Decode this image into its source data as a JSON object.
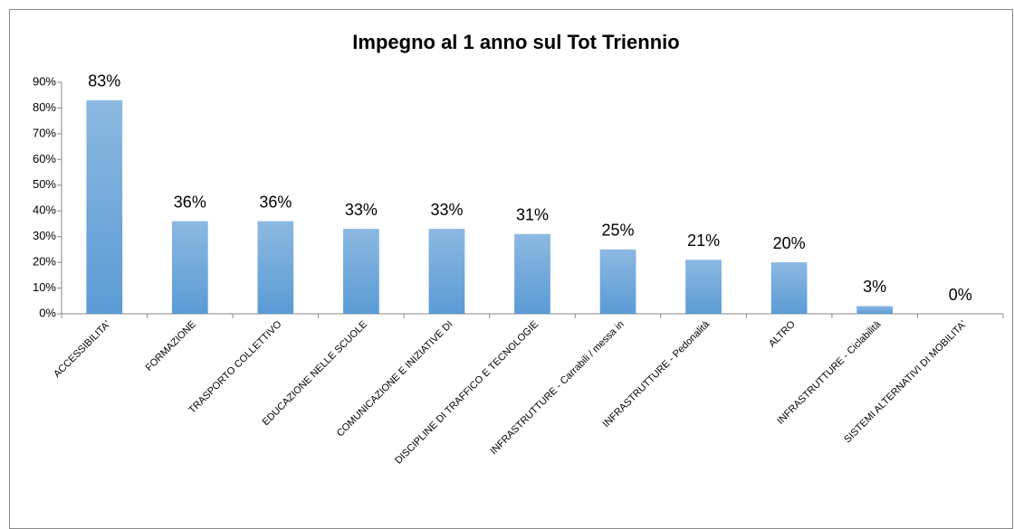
{
  "chart_data": {
    "type": "bar",
    "title": "Impegno al 1 anno sul Tot Triennio",
    "categories": [
      "ACCESSIBILITA'",
      "FORMAZIONE",
      "TRASPORTO COLLETTIVO",
      "EDUCAZIONE NELLE SCUOLE",
      "COMUNICAZIONE E INIZIATIVE DI",
      "DISCIPLINE DI TRAFFICO E TECNOLOGIE",
      "INFRASTRUTTURE - Carrabili / messa in",
      "INFRASTRUTTURE - Pedonalità",
      "ALTRO",
      "INFRASTRUTTURE - Ciclabilità",
      "SISTEMI ALTERNATIVI DI MOBILITA'"
    ],
    "values": [
      83,
      36,
      36,
      33,
      33,
      31,
      25,
      21,
      20,
      3,
      0
    ],
    "value_labels": [
      "83%",
      "36%",
      "36%",
      "33%",
      "33%",
      "31%",
      "25%",
      "21%",
      "20%",
      "3%",
      "0%"
    ],
    "color": "#5b9bd5",
    "ylim": [
      0,
      90
    ],
    "yticks": [
      {
        "value": 0,
        "label": "0%"
      },
      {
        "value": 10,
        "label": "10%"
      },
      {
        "value": 20,
        "label": "20%"
      },
      {
        "value": 30,
        "label": "30%"
      },
      {
        "value": 40,
        "label": "40%"
      },
      {
        "value": 50,
        "label": "50%"
      },
      {
        "value": 60,
        "label": "60%"
      },
      {
        "value": 70,
        "label": "70%"
      },
      {
        "value": 80,
        "label": "80%"
      },
      {
        "value": 90,
        "label": "90%"
      }
    ],
    "grid": false
  }
}
